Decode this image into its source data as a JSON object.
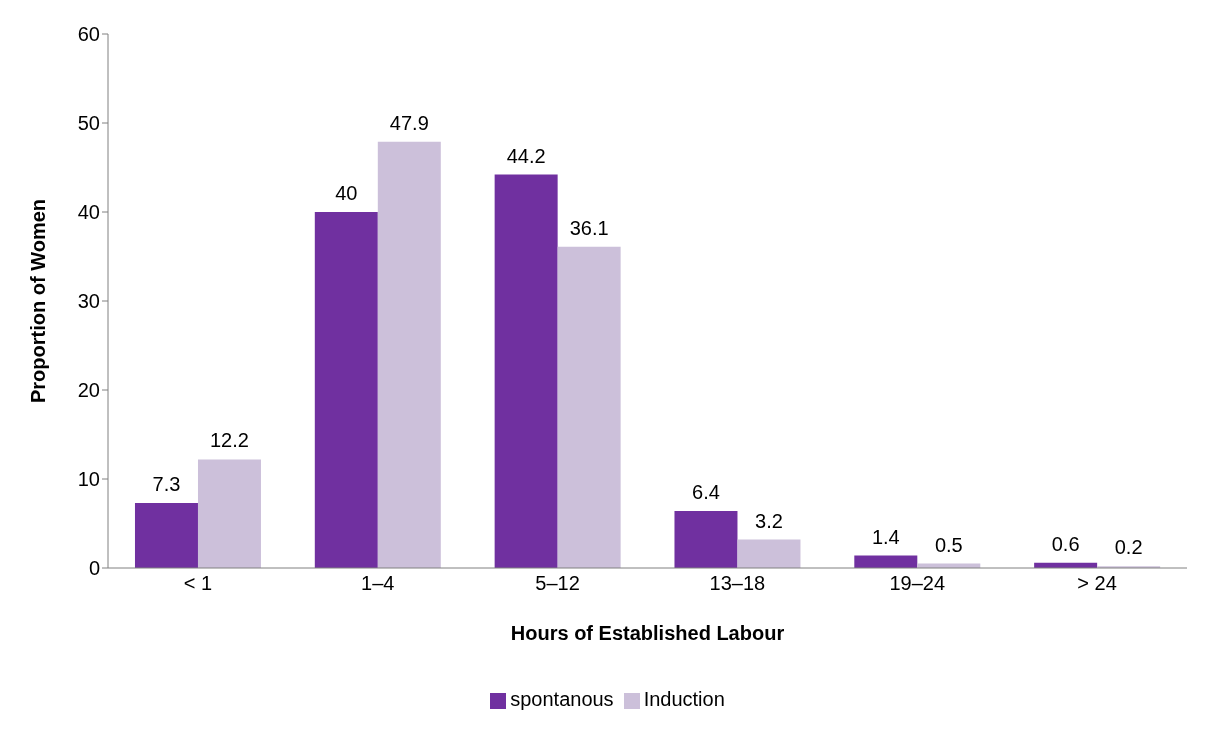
{
  "chart_data": {
    "type": "bar",
    "xlabel": "Hours of Established Labour",
    "ylabel": "Proportion of Women",
    "categories": [
      "< 1",
      "1–4",
      "5–12",
      "13–18",
      "19–24",
      "> 24"
    ],
    "series": [
      {
        "name": "spontanous",
        "color": "#7030a0",
        "values": [
          7.3,
          40,
          44.2,
          6.4,
          1.4,
          0.6
        ]
      },
      {
        "name": "Induction",
        "color": "#ccc0da",
        "values": [
          12.2,
          47.9,
          36.1,
          3.2,
          0.5,
          0.2
        ]
      }
    ],
    "ylim": [
      0,
      60
    ],
    "yticks": [
      0,
      10,
      20,
      30,
      40,
      50,
      60
    ],
    "legend": "bottom",
    "data_labels": true
  }
}
